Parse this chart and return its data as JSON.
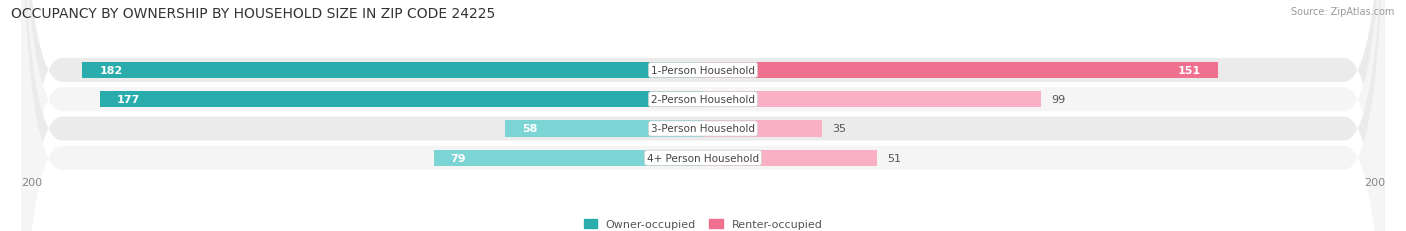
{
  "title": "OCCUPANCY BY OWNERSHIP BY HOUSEHOLD SIZE IN ZIP CODE 24225",
  "source": "Source: ZipAtlas.com",
  "categories": [
    "1-Person Household",
    "2-Person Household",
    "3-Person Household",
    "4+ Person Household"
  ],
  "owner_values": [
    182,
    177,
    58,
    79
  ],
  "renter_values": [
    151,
    99,
    35,
    51
  ],
  "owner_color_dark": "#2AACAC",
  "owner_color_light": "#7DD4D4",
  "renter_color_dark": "#F07090",
  "renter_color_light": "#F9B0C4",
  "row_bg_color_odd": "#EBEBEB",
  "row_bg_color_even": "#F5F5F5",
  "x_max": 200,
  "legend_owner": "Owner-occupied",
  "legend_renter": "Renter-occupied",
  "title_fontsize": 10,
  "label_fontsize": 8,
  "value_fontsize": 8,
  "fig_bg_color": "#FFFFFF",
  "bar_height": 0.55
}
